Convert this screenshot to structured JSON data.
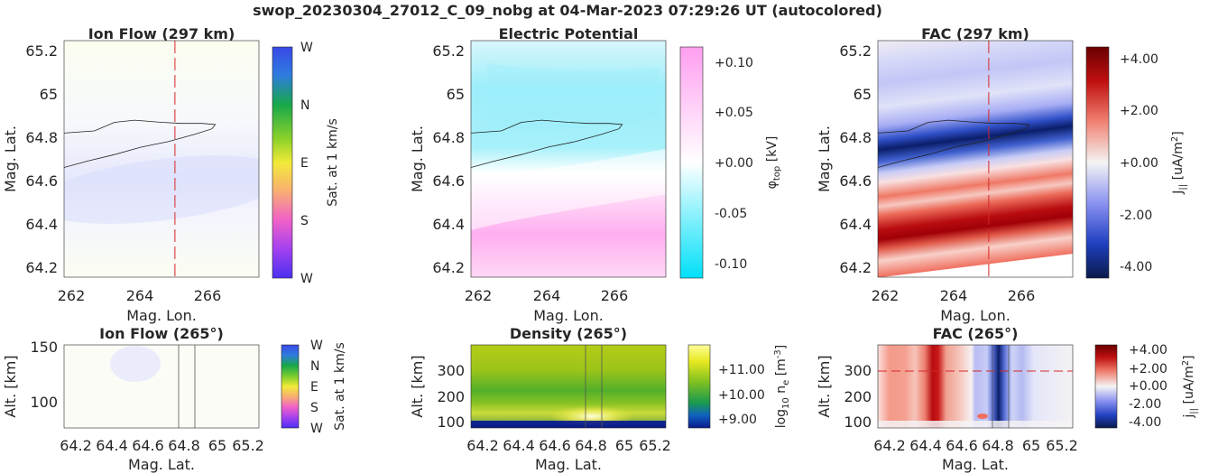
{
  "figure": {
    "title": "swop_20230304_27012_C_09_nobg at 04-Mar-2023 07:29:26 UT (autocolored)"
  },
  "panels": {
    "ion_flow_map": {
      "title": "Ion Flow (297 km)",
      "xlabel": "Mag. Lon.",
      "ylabel": "Mag. Lat.",
      "xticks": [
        "262",
        "264",
        "266"
      ],
      "yticks": [
        "64.2",
        "64.4",
        "64.6",
        "64.8",
        "65",
        "65.2"
      ],
      "cbar_label": "Sat. at 1 km/s",
      "cbar_ticks": [
        "W",
        "N",
        "E",
        "S",
        "W"
      ]
    },
    "potential_map": {
      "title": "Electric Potential",
      "xlabel": "Mag. Lon.",
      "ylabel": "Mag. Lat.",
      "xticks": [
        "262",
        "264",
        "266"
      ],
      "yticks": [
        "64.2",
        "64.4",
        "64.6",
        "64.8",
        "65",
        "65.2"
      ],
      "cbar_label_main": "φ",
      "cbar_label_sub": "top",
      "cbar_label_unit": " [kV]",
      "cbar_ticks": [
        "+0.10",
        "+0.05",
        "+0.00",
        "-0.05",
        "-0.10"
      ]
    },
    "fac_map": {
      "title": "FAC (297 km)",
      "xlabel": "Mag. Lon.",
      "ylabel": "Mag. Lat.",
      "xticks": [
        "262",
        "264",
        "266"
      ],
      "yticks": [
        "64.2",
        "64.4",
        "64.6",
        "64.8",
        "65",
        "65.2"
      ],
      "cbar_label_main": "J",
      "cbar_label_sub": "||",
      "cbar_label_unit": " [uA/m",
      "cbar_label_sup": "2",
      "cbar_label_end": "]",
      "cbar_ticks": [
        "+4.00",
        "+2.00",
        "+0.00",
        "-2.00",
        "-4.00"
      ]
    },
    "ion_flow_alt": {
      "title": "Ion Flow (265°)",
      "xlabel": "Mag. Lat.",
      "ylabel": "Alt. [km]",
      "xticks": [
        "64.2",
        "64.4",
        "64.6",
        "64.8",
        "65",
        "65.2"
      ],
      "yticks": [
        "150",
        "100"
      ],
      "cbar_label": "Sat. at 1 km/s",
      "cbar_ticks": [
        "W",
        "N",
        "E",
        "S",
        "W"
      ]
    },
    "density_alt": {
      "title": "Density (265°)",
      "xlabel": "Mag. Lat.",
      "ylabel": "Alt. [km]",
      "xticks": [
        "64.2",
        "64.4",
        "64.6",
        "64.8",
        "65",
        "65.2"
      ],
      "yticks": [
        "300",
        "200",
        "100"
      ],
      "cbar_label_main": "log",
      "cbar_label_sub": "10",
      "cbar_label_unit": " n",
      "cbar_label_sub2": "e",
      "cbar_label_unit2": " [m",
      "cbar_label_sup": "-3",
      "cbar_label_end": "]",
      "cbar_ticks": [
        "+11.00",
        "+10.00",
        "+9.00"
      ]
    },
    "fac_alt": {
      "title": "FAC (265°)",
      "xlabel": "Mag. Lat.",
      "ylabel": "Alt. [km]",
      "xticks": [
        "64.2",
        "64.4",
        "64.6",
        "64.8",
        "65",
        "65.2"
      ],
      "yticks": [
        "300",
        "200",
        "100"
      ],
      "cbar_label_main": "j",
      "cbar_label_sub": "||",
      "cbar_label_unit": " [uA/m",
      "cbar_label_sup": "2",
      "cbar_label_end": "]",
      "cbar_ticks": [
        "+4.00",
        "+2.00",
        "+0.00",
        "-2.00",
        "-4.00"
      ]
    }
  },
  "chart_data": [
    {
      "type": "heatmap",
      "title": "Ion Flow (297 km)",
      "xlabel": "Mag. Lon.",
      "ylabel": "Mag. Lat.",
      "xlim": [
        261.7,
        267.5
      ],
      "ylim": [
        64.15,
        65.25
      ],
      "colorbar": {
        "label": "Sat. at 1 km/s",
        "ticks": [
          "W",
          "N",
          "E",
          "S",
          "W"
        ]
      },
      "reference_lines": [
        {
          "axis": "x",
          "value": 265.0,
          "style": "dashed",
          "color": "#d62728"
        }
      ],
      "contour": {
        "lon": [
          261.7,
          262.6,
          263.2,
          263.8,
          264.6,
          265.2,
          265.8,
          266.2,
          266.1,
          265.6,
          264.8,
          264.0,
          263.2,
          262.4,
          261.7
        ],
        "lat": [
          64.82,
          64.83,
          64.87,
          64.88,
          64.87,
          64.865,
          64.865,
          64.86,
          64.84,
          64.815,
          64.78,
          64.755,
          64.72,
          64.69,
          64.66
        ]
      }
    },
    {
      "type": "heatmap",
      "title": "Electric Potential",
      "xlabel": "Mag. Lon.",
      "ylabel": "Mag. Lat.",
      "xlim": [
        261.7,
        267.5
      ],
      "ylim": [
        64.15,
        65.25
      ],
      "colorbar": {
        "label": "φtop [kV]",
        "range": [
          -0.11,
          0.11
        ],
        "ticks": [
          0.1,
          0.05,
          0.0,
          -0.05,
          -0.1
        ],
        "colors": [
          "#00e0f8",
          "#ffffff",
          "#ff9ef0"
        ]
      },
      "field": [
        {
          "lat": 65.25,
          "value": -0.015
        },
        {
          "lat": 65.0,
          "value": -0.05
        },
        {
          "lat": 64.8,
          "value": -0.055
        },
        {
          "lat_boundary_west": 64.6,
          "lat_boundary_east": 64.69,
          "value": 0.0
        },
        {
          "lat": 64.4,
          "value": 0.065
        },
        {
          "lat": 64.15,
          "value": 0.02
        }
      ]
    },
    {
      "type": "heatmap",
      "title": "FAC (297 km)",
      "xlabel": "Mag. Lon.",
      "ylabel": "Mag. Lat.",
      "xlim": [
        261.7,
        267.5
      ],
      "ylim": [
        64.15,
        65.25
      ],
      "colorbar": {
        "label": "J|| [uA/m2]",
        "range": [
          -4.4,
          4.4
        ],
        "ticks": [
          4.0,
          2.0,
          0.0,
          -2.0,
          -4.0
        ]
      },
      "reference_lines": [
        {
          "axis": "x",
          "value": 265.0,
          "style": "dashed",
          "color": "#d62728"
        }
      ],
      "bands_lat_at_west_edge": [
        {
          "lat": 65.2,
          "value": 0.3
        },
        {
          "lat": 65.05,
          "value": -1.0
        },
        {
          "lat": 64.9,
          "value": -0.6
        },
        {
          "lat": 64.75,
          "value": -4.0
        },
        {
          "lat": 64.65,
          "value": 0.5
        },
        {
          "lat": 64.55,
          "value": 2.2
        },
        {
          "lat": 64.4,
          "value": 4.0
        },
        {
          "lat": 64.25,
          "value": 1.5
        }
      ]
    },
    {
      "type": "heatmap",
      "title": "Ion Flow (265°)",
      "xlabel": "Mag. Lat.",
      "ylabel": "Alt. [km]",
      "xlim": [
        64.12,
        65.25
      ],
      "ylim": [
        80,
        150
      ],
      "colorbar": {
        "label": "Sat. at 1 km/s",
        "ticks": [
          "W",
          "N",
          "E",
          "S",
          "W"
        ]
      },
      "vertical_lines": [
        64.78,
        64.87
      ]
    },
    {
      "type": "heatmap",
      "title": "Density (265°)",
      "xlabel": "Mag. Lat.",
      "ylabel": "Alt. [km]",
      "xlim": [
        64.12,
        65.25
      ],
      "ylim": [
        90,
        390
      ],
      "colorbar": {
        "label": "log10 ne [m-3]",
        "range": [
          8.6,
          11.6
        ],
        "ticks": [
          11.0,
          10.0,
          9.0
        ]
      },
      "vertical_lines": [
        64.78,
        64.87
      ]
    },
    {
      "type": "heatmap",
      "title": "FAC (265°)",
      "xlabel": "Mag. Lat.",
      "ylabel": "Alt. [km]",
      "xlim": [
        64.12,
        65.25
      ],
      "ylim": [
        90,
        390
      ],
      "colorbar": {
        "label": "j|| [uA/m2]",
        "range": [
          -4.4,
          4.4
        ],
        "ticks": [
          4.0,
          2.0,
          0.0,
          -2.0,
          -4.0
        ]
      },
      "reference_lines": [
        {
          "axis": "y",
          "value": 300,
          "style": "dashed",
          "color": "#d62728"
        }
      ],
      "vertical_lines": [
        64.78,
        64.87
      ]
    }
  ]
}
